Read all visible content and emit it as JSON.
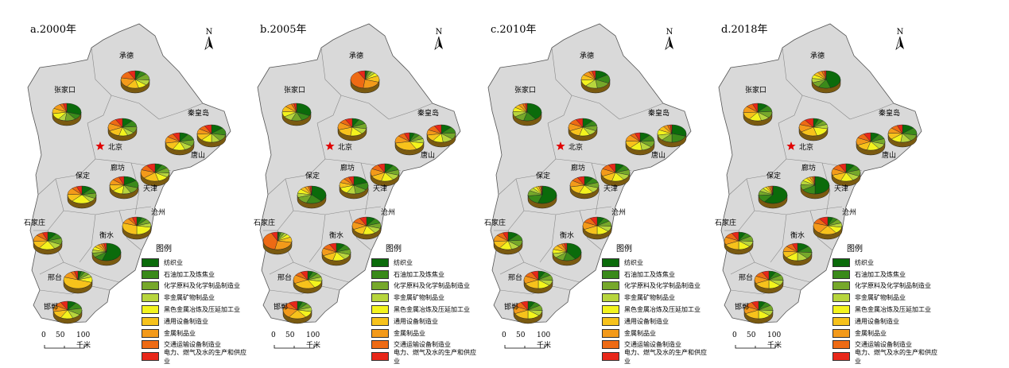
{
  "north_label": "N",
  "scale": {
    "labels": [
      "0",
      "50",
      "100"
    ],
    "unit": "千米"
  },
  "legend": {
    "title": "图例",
    "items": [
      {
        "label": "纺织业",
        "color": "#0b6b0b"
      },
      {
        "label": "石油加工及炼焦业",
        "color": "#3a8a1a"
      },
      {
        "label": "化学原料及化学制品制造业",
        "color": "#76a82a"
      },
      {
        "label": "非金属矿物制品业",
        "color": "#b7d53d"
      },
      {
        "label": "黑色金属冶炼及压延加工业",
        "color": "#f3f31d"
      },
      {
        "label": "通用设备制造业",
        "color": "#f7c21b"
      },
      {
        "label": "金属制品业",
        "color": "#f39a1a"
      },
      {
        "label": "交通运输设备制造业",
        "color": "#ee6a14"
      },
      {
        "label": "电力、燃气及水的生产和供应业",
        "color": "#e8271a"
      }
    ]
  },
  "capital": {
    "label": "北京"
  },
  "cities": [
    "承德",
    "张家口",
    "秦皇岛",
    "唐山",
    "廊坊",
    "天津",
    "保定",
    "沧州",
    "石家庄",
    "衡水",
    "邢台",
    "邯郸"
  ],
  "panels": [
    {
      "title": "a.2000年",
      "pies": {
        "承德": [
          0.06,
          0.08,
          0.12,
          0.1,
          0.1,
          0.14,
          0.18,
          0.14,
          0.08
        ],
        "张家口": [
          0.3,
          0.1,
          0.12,
          0.08,
          0.12,
          0.1,
          0.1,
          0.04,
          0.04
        ],
        "北京": [
          0.12,
          0.12,
          0.12,
          0.08,
          0.1,
          0.14,
          0.14,
          0.1,
          0.08
        ],
        "秦皇岛": [
          0.14,
          0.14,
          0.12,
          0.1,
          0.12,
          0.12,
          0.1,
          0.08,
          0.08
        ],
        "唐山": [
          0.1,
          0.12,
          0.12,
          0.1,
          0.14,
          0.14,
          0.12,
          0.08,
          0.08
        ],
        "天津": [
          0.08,
          0.08,
          0.1,
          0.08,
          0.12,
          0.18,
          0.16,
          0.1,
          0.1
        ],
        "廊坊": [
          0.16,
          0.14,
          0.12,
          0.1,
          0.12,
          0.12,
          0.1,
          0.08,
          0.06
        ],
        "保定": [
          0.12,
          0.1,
          0.1,
          0.08,
          0.22,
          0.14,
          0.12,
          0.06,
          0.06
        ],
        "沧州": [
          0.06,
          0.06,
          0.08,
          0.08,
          0.22,
          0.3,
          0.1,
          0.05,
          0.05
        ],
        "石家庄": [
          0.1,
          0.1,
          0.12,
          0.1,
          0.18,
          0.14,
          0.12,
          0.08,
          0.06
        ],
        "衡水": [
          0.55,
          0.1,
          0.08,
          0.06,
          0.06,
          0.05,
          0.04,
          0.03,
          0.03
        ],
        "邢台": [
          0.04,
          0.04,
          0.06,
          0.06,
          0.1,
          0.5,
          0.12,
          0.04,
          0.04
        ],
        "邯郸": [
          0.1,
          0.12,
          0.12,
          0.1,
          0.14,
          0.14,
          0.12,
          0.08,
          0.08
        ]
      }
    },
    {
      "title": "b.2005年",
      "pies": {
        "承德": [
          0.02,
          0.02,
          0.04,
          0.04,
          0.06,
          0.12,
          0.22,
          0.4,
          0.08
        ],
        "张家口": [
          0.32,
          0.12,
          0.12,
          0.1,
          0.1,
          0.1,
          0.08,
          0.03,
          0.03
        ],
        "北京": [
          0.08,
          0.1,
          0.1,
          0.1,
          0.14,
          0.18,
          0.14,
          0.08,
          0.08
        ],
        "秦皇岛": [
          0.12,
          0.12,
          0.12,
          0.12,
          0.12,
          0.12,
          0.1,
          0.1,
          0.08
        ],
        "唐山": [
          0.06,
          0.06,
          0.08,
          0.08,
          0.14,
          0.3,
          0.14,
          0.08,
          0.06
        ],
        "天津": [
          0.1,
          0.1,
          0.1,
          0.1,
          0.14,
          0.14,
          0.14,
          0.1,
          0.08
        ],
        "廊坊": [
          0.2,
          0.14,
          0.14,
          0.1,
          0.12,
          0.1,
          0.08,
          0.06,
          0.06
        ],
        "保定": [
          0.38,
          0.18,
          0.14,
          0.08,
          0.08,
          0.06,
          0.04,
          0.02,
          0.02
        ],
        "沧州": [
          0.1,
          0.1,
          0.1,
          0.1,
          0.14,
          0.14,
          0.14,
          0.1,
          0.08
        ],
        "石家庄": [
          0.02,
          0.02,
          0.04,
          0.04,
          0.06,
          0.1,
          0.25,
          0.4,
          0.07
        ],
        "衡水": [
          0.1,
          0.1,
          0.1,
          0.1,
          0.14,
          0.14,
          0.14,
          0.1,
          0.08
        ],
        "邢台": [
          0.06,
          0.06,
          0.08,
          0.08,
          0.14,
          0.26,
          0.16,
          0.08,
          0.08
        ],
        "邯郸": [
          0.06,
          0.06,
          0.08,
          0.08,
          0.12,
          0.2,
          0.2,
          0.1,
          0.1
        ]
      }
    },
    {
      "title": "c.2010年",
      "pies": {
        "承德": [
          0.16,
          0.16,
          0.16,
          0.14,
          0.12,
          0.1,
          0.08,
          0.04,
          0.04
        ],
        "张家口": [
          0.4,
          0.14,
          0.12,
          0.1,
          0.08,
          0.06,
          0.05,
          0.03,
          0.02
        ],
        "北京": [
          0.12,
          0.1,
          0.1,
          0.1,
          0.12,
          0.14,
          0.14,
          0.1,
          0.08
        ],
        "秦皇岛": [
          0.3,
          0.2,
          0.12,
          0.1,
          0.1,
          0.08,
          0.05,
          0.03,
          0.02
        ],
        "唐山": [
          0.12,
          0.12,
          0.12,
          0.12,
          0.14,
          0.14,
          0.12,
          0.06,
          0.06
        ],
        "天津": [
          0.1,
          0.1,
          0.1,
          0.1,
          0.14,
          0.14,
          0.14,
          0.1,
          0.08
        ],
        "廊坊": [
          0.1,
          0.1,
          0.1,
          0.1,
          0.16,
          0.16,
          0.12,
          0.08,
          0.08
        ],
        "保定": [
          0.55,
          0.18,
          0.1,
          0.06,
          0.04,
          0.03,
          0.02,
          0.01,
          0.01
        ],
        "沧州": [
          0.08,
          0.08,
          0.1,
          0.1,
          0.14,
          0.18,
          0.14,
          0.1,
          0.08
        ],
        "石家庄": [
          0.12,
          0.12,
          0.12,
          0.1,
          0.14,
          0.14,
          0.12,
          0.08,
          0.06
        ],
        "衡水": [
          0.4,
          0.14,
          0.1,
          0.08,
          0.08,
          0.08,
          0.06,
          0.03,
          0.03
        ],
        "邢台": [
          0.08,
          0.08,
          0.1,
          0.1,
          0.14,
          0.18,
          0.14,
          0.1,
          0.08
        ],
        "邯郸": [
          0.08,
          0.08,
          0.1,
          0.1,
          0.14,
          0.18,
          0.14,
          0.1,
          0.08
        ]
      }
    },
    {
      "title": "d.2018年",
      "pies": {
        "承德": [
          0.45,
          0.14,
          0.1,
          0.08,
          0.07,
          0.06,
          0.05,
          0.03,
          0.02
        ],
        "张家口": [
          0.12,
          0.12,
          0.12,
          0.1,
          0.14,
          0.14,
          0.12,
          0.08,
          0.06
        ],
        "北京": [
          0.06,
          0.06,
          0.08,
          0.08,
          0.18,
          0.2,
          0.14,
          0.1,
          0.1
        ],
        "秦皇岛": [
          0.14,
          0.14,
          0.12,
          0.12,
          0.12,
          0.12,
          0.1,
          0.08,
          0.06
        ],
        "唐山": [
          0.1,
          0.1,
          0.1,
          0.1,
          0.14,
          0.14,
          0.14,
          0.1,
          0.08
        ],
        "天津": [
          0.1,
          0.1,
          0.12,
          0.1,
          0.14,
          0.14,
          0.12,
          0.1,
          0.08
        ],
        "廊坊": [
          0.5,
          0.16,
          0.1,
          0.08,
          0.06,
          0.04,
          0.03,
          0.02,
          0.01
        ],
        "保定": [
          0.6,
          0.14,
          0.08,
          0.06,
          0.04,
          0.03,
          0.02,
          0.02,
          0.01
        ],
        "沧州": [
          0.06,
          0.06,
          0.08,
          0.08,
          0.12,
          0.2,
          0.2,
          0.1,
          0.1
        ],
        "石家庄": [
          0.08,
          0.08,
          0.1,
          0.1,
          0.14,
          0.18,
          0.14,
          0.1,
          0.08
        ],
        "衡水": [
          0.14,
          0.12,
          0.12,
          0.12,
          0.14,
          0.12,
          0.1,
          0.08,
          0.06
        ],
        "邢台": [
          0.08,
          0.08,
          0.1,
          0.1,
          0.14,
          0.18,
          0.14,
          0.1,
          0.08
        ],
        "邯郸": [
          0.08,
          0.08,
          0.1,
          0.1,
          0.14,
          0.18,
          0.14,
          0.1,
          0.08
        ]
      }
    }
  ]
}
